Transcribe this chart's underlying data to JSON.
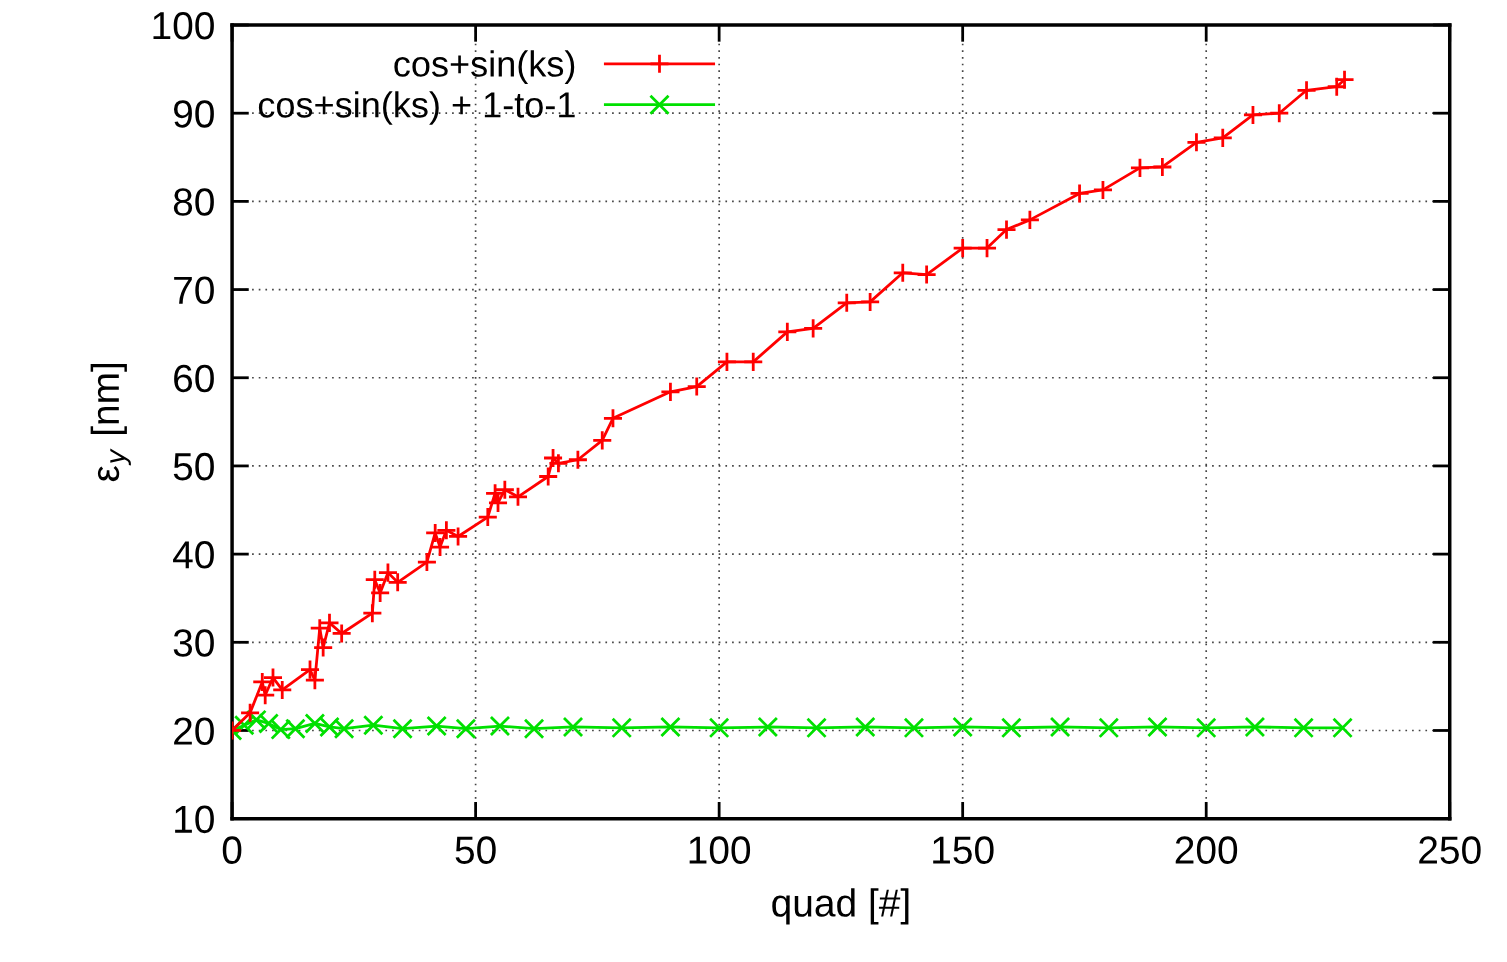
{
  "chart_data": {
    "type": "line",
    "xlabel": "quad [#]",
    "ylabel": "ε$_{y}$ [nm]",
    "xlim": [
      0,
      250
    ],
    "xticks": [
      0,
      50,
      100,
      150,
      200,
      250
    ],
    "ylim": [
      10,
      100
    ],
    "yticks": [
      10,
      20,
      30,
      40,
      50,
      60,
      70,
      80,
      90,
      100
    ],
    "grid": true,
    "legend": "top left",
    "series": [
      {
        "name": "cos+sin(ks)",
        "color": "#ff0000",
        "marker": "plus",
        "x": [
          0,
          3.7,
          6.2,
          6.8,
          8.4,
          10.3,
          16,
          17,
          18,
          18.7,
          20,
          22.5,
          28.8,
          29.3,
          30.4,
          32,
          34,
          40,
          41.7,
          42.7,
          44,
          46.4,
          52.5,
          54,
          54.6,
          56,
          58.7,
          64.9,
          65.9,
          67,
          71,
          76,
          78.2,
          90,
          95.4,
          101.6,
          107,
          114,
          119.3,
          126.2,
          131,
          137.7,
          142.6,
          150,
          155,
          159,
          163.8,
          174,
          178.8,
          186.4,
          191,
          198,
          203.4,
          209.6,
          215,
          220.6,
          226.8,
          228.4
        ],
        "values": [
          20,
          22,
          25.5,
          24,
          26,
          24.6,
          26.9,
          25.7,
          31.6,
          29.4,
          32.2,
          31,
          33.3,
          37.1,
          35.6,
          37.9,
          36.8,
          39.1,
          42.4,
          40.8,
          42.7,
          42,
          44.2,
          46.9,
          45.8,
          47.3,
          46.5,
          48.8,
          50.9,
          50.3,
          50.7,
          52.9,
          55.4,
          58.4,
          59,
          61.8,
          61.8,
          65.2,
          65.6,
          68.5,
          68.6,
          71.9,
          71.7,
          74.7,
          74.7,
          76.8,
          77.9,
          80.9,
          81.3,
          83.8,
          83.9,
          86.7,
          87.2,
          89.8,
          90,
          92.6,
          93,
          93.8
        ]
      },
      {
        "name": "cos+sin(ks) + 1-to-1",
        "color": "#00e000",
        "marker": "cross",
        "x": [
          0,
          2.5,
          5,
          7.5,
          10,
          13,
          17,
          20,
          23,
          29,
          35,
          42,
          48,
          55,
          62,
          70,
          80,
          90,
          100,
          110,
          120,
          130,
          140,
          150,
          160,
          170,
          180,
          190,
          200,
          210,
          220,
          228
        ],
        "values": [
          20,
          20.6,
          21.2,
          20.8,
          20.1,
          20.2,
          20.8,
          20.4,
          20.2,
          20.6,
          20.2,
          20.5,
          20.2,
          20.5,
          20.2,
          20.4,
          20.3,
          20.4,
          20.3,
          20.4,
          20.3,
          20.4,
          20.3,
          20.4,
          20.3,
          20.4,
          20.3,
          20.4,
          20.3,
          20.4,
          20.3,
          20.3
        ]
      }
    ]
  }
}
